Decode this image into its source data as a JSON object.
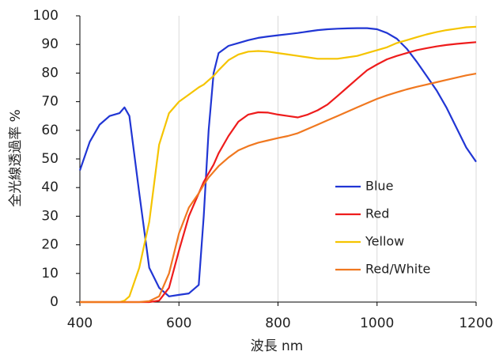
{
  "chart_data": {
    "type": "line",
    "xlabel": "波長 nm",
    "ylabel": "全光線透過率 %",
    "x": [
      400,
      420,
      440,
      460,
      480,
      490,
      500,
      520,
      540,
      560,
      580,
      600,
      620,
      640,
      650,
      660,
      670,
      680,
      700,
      720,
      740,
      760,
      780,
      800,
      820,
      840,
      860,
      880,
      900,
      920,
      940,
      960,
      980,
      1000,
      1020,
      1040,
      1060,
      1080,
      1100,
      1120,
      1140,
      1160,
      1180,
      1200
    ],
    "series": [
      {
        "name": "Blue",
        "color": "#2136d4",
        "values": [
          46,
          56,
          62,
          65,
          66,
          68,
          65,
          38,
          12,
          5,
          2,
          2.5,
          3,
          6,
          30,
          60,
          80,
          87,
          89.5,
          90.5,
          91.5,
          92.3,
          92.8,
          93.2,
          93.6,
          94,
          94.5,
          95,
          95.3,
          95.5,
          95.6,
          95.7,
          95.7,
          95.3,
          94,
          92,
          88.5,
          84,
          79,
          74,
          68,
          61,
          54,
          49
        ]
      },
      {
        "name": "Red",
        "color": "#ee1c1c",
        "values": [
          0,
          0,
          0,
          0,
          0,
          0,
          0,
          0,
          0,
          0.5,
          5,
          18,
          30,
          38,
          42,
          45,
          48,
          52,
          58,
          63,
          65.5,
          66.3,
          66.2,
          65.5,
          65,
          64.5,
          65.5,
          67,
          69,
          72,
          75,
          78,
          81,
          83,
          84.8,
          86,
          87,
          88,
          88.7,
          89.3,
          89.8,
          90.2,
          90.5,
          90.8
        ]
      },
      {
        "name": "Yellow",
        "color": "#f5c400",
        "values": [
          0,
          0,
          0,
          0,
          0,
          0.5,
          2,
          12,
          28,
          55,
          66,
          70,
          72.5,
          75,
          76,
          77.5,
          79,
          81,
          84.5,
          86.5,
          87.5,
          87.7,
          87.5,
          87,
          86.5,
          86,
          85.5,
          85,
          85,
          85,
          85.5,
          86,
          87,
          88,
          89,
          90.5,
          91.5,
          92.5,
          93.5,
          94.3,
          95,
          95.5,
          96,
          96.2
        ]
      },
      {
        "name": "Red/White",
        "color": "#f07820",
        "values": [
          0,
          0,
          0,
          0,
          0,
          0,
          0,
          0,
          0.3,
          2,
          10,
          24,
          33,
          38,
          41,
          43.5,
          45.5,
          47.5,
          50.5,
          53,
          54.5,
          55.7,
          56.5,
          57.3,
          58,
          59,
          60.5,
          62,
          63.5,
          65,
          66.5,
          68,
          69.5,
          71,
          72.2,
          73.3,
          74.3,
          75.2,
          76,
          76.8,
          77.6,
          78.4,
          79.2,
          79.8
        ]
      }
    ],
    "xlim": [
      400,
      1200
    ],
    "xticks": [
      400,
      600,
      800,
      1000,
      1200
    ],
    "ylim": [
      0,
      100
    ],
    "yticks": [
      0,
      10,
      20,
      30,
      40,
      50,
      60,
      70,
      80,
      90,
      100
    ],
    "grid": "x"
  }
}
